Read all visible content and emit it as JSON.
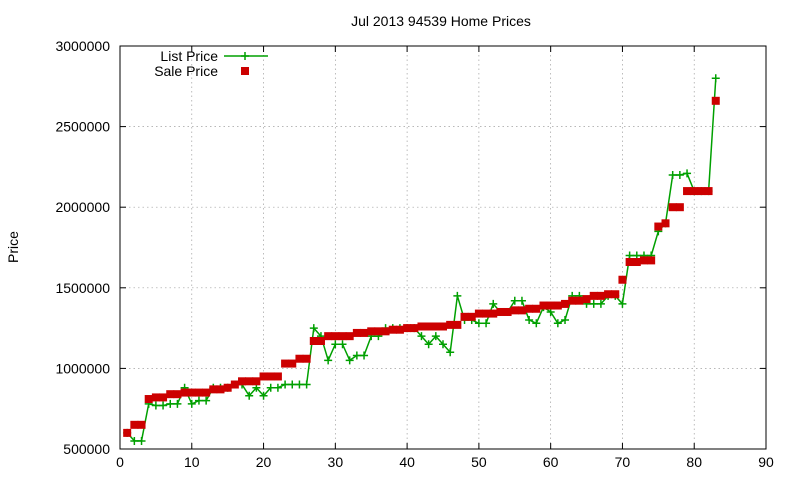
{
  "chart_data": {
    "type": "scatter",
    "title": "Jul 2013 94539 Home Prices",
    "xlabel": "",
    "ylabel": "Price",
    "xlim": [
      0,
      90
    ],
    "ylim": [
      500000,
      3000000
    ],
    "xticks": [
      0,
      10,
      20,
      30,
      40,
      50,
      60,
      70,
      80,
      90
    ],
    "yticks": [
      500000,
      1000000,
      1500000,
      2000000,
      2500000,
      3000000
    ],
    "grid": true,
    "legend_position": "top-left",
    "series": [
      {
        "name": "List Price",
        "style": "linespoints",
        "color": "#00a000",
        "x": [
          1,
          2,
          3,
          4,
          5,
          6,
          7,
          8,
          9,
          10,
          11,
          12,
          13,
          14,
          15,
          16,
          17,
          18,
          19,
          20,
          21,
          22,
          23,
          24,
          25,
          26,
          27,
          28,
          29,
          30,
          31,
          32,
          33,
          34,
          35,
          36,
          37,
          38,
          39,
          40,
          41,
          42,
          43,
          44,
          45,
          46,
          47,
          48,
          49,
          50,
          51,
          52,
          53,
          54,
          55,
          56,
          57,
          58,
          59,
          60,
          61,
          62,
          63,
          64,
          65,
          66,
          67,
          68,
          69,
          70,
          71,
          72,
          73,
          74,
          75,
          76,
          77,
          78,
          79,
          80,
          81,
          82,
          83
        ],
        "y": [
          600000,
          550000,
          550000,
          780000,
          770000,
          770000,
          780000,
          780000,
          880000,
          780000,
          800000,
          800000,
          880000,
          880000,
          880000,
          900000,
          900000,
          830000,
          880000,
          830000,
          880000,
          880000,
          900000,
          900000,
          900000,
          900000,
          1250000,
          1200000,
          1050000,
          1150000,
          1150000,
          1050000,
          1080000,
          1080000,
          1200000,
          1200000,
          1250000,
          1250000,
          1250000,
          1250000,
          1250000,
          1200000,
          1150000,
          1200000,
          1150000,
          1100000,
          1450000,
          1300000,
          1300000,
          1280000,
          1280000,
          1400000,
          1350000,
          1350000,
          1420000,
          1420000,
          1300000,
          1280000,
          1380000,
          1350000,
          1280000,
          1300000,
          1450000,
          1450000,
          1400000,
          1400000,
          1400000,
          1450000,
          1450000,
          1400000,
          1700000,
          1700000,
          1700000,
          1700000,
          1850000,
          1900000,
          2200000,
          2200000,
          2210000,
          2100000,
          2100000,
          2100000,
          2800000
        ]
      },
      {
        "name": "Sale Price",
        "style": "points",
        "color": "#cc0000",
        "x": [
          1,
          2,
          3,
          4,
          5,
          6,
          7,
          8,
          9,
          10,
          11,
          12,
          13,
          14,
          15,
          16,
          17,
          18,
          19,
          20,
          21,
          22,
          23,
          24,
          25,
          26,
          27,
          28,
          29,
          30,
          31,
          32,
          33,
          34,
          35,
          36,
          37,
          38,
          39,
          40,
          41,
          42,
          43,
          44,
          45,
          46,
          47,
          48,
          49,
          50,
          51,
          52,
          53,
          54,
          55,
          56,
          57,
          58,
          59,
          60,
          61,
          62,
          63,
          64,
          65,
          66,
          67,
          68,
          69,
          70,
          71,
          72,
          73,
          74,
          75,
          76,
          77,
          78,
          79,
          80,
          81,
          82,
          83
        ],
        "y": [
          600000,
          650000,
          650000,
          810000,
          820000,
          820000,
          840000,
          840000,
          850000,
          850000,
          850000,
          850000,
          870000,
          870000,
          880000,
          900000,
          920000,
          920000,
          920000,
          950000,
          950000,
          950000,
          1030000,
          1030000,
          1060000,
          1060000,
          1170000,
          1170000,
          1200000,
          1200000,
          1200000,
          1200000,
          1220000,
          1220000,
          1230000,
          1230000,
          1230000,
          1240000,
          1240000,
          1250000,
          1250000,
          1260000,
          1260000,
          1260000,
          1260000,
          1270000,
          1270000,
          1320000,
          1320000,
          1340000,
          1340000,
          1340000,
          1350000,
          1350000,
          1360000,
          1360000,
          1370000,
          1370000,
          1390000,
          1390000,
          1390000,
          1400000,
          1420000,
          1420000,
          1430000,
          1450000,
          1450000,
          1460000,
          1460000,
          1550000,
          1660000,
          1660000,
          1670000,
          1670000,
          1880000,
          1900000,
          2000000,
          2000000,
          2100000,
          2100000,
          2100000,
          2100000,
          2660000
        ]
      }
    ]
  }
}
